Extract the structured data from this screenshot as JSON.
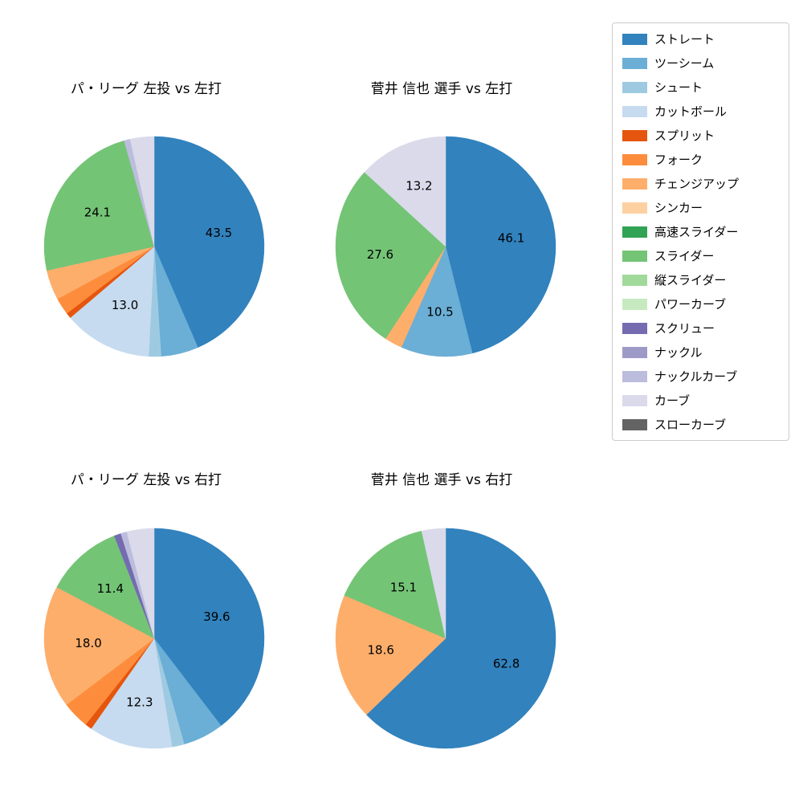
{
  "figure": {
    "background": "#ffffff"
  },
  "legend": {
    "position": "right",
    "items": [
      {
        "label": "ストレート",
        "color": "#3182bd"
      },
      {
        "label": "ツーシーム",
        "color": "#6baed6"
      },
      {
        "label": "シュート",
        "color": "#9ecae1"
      },
      {
        "label": "カットボール",
        "color": "#c6dbef"
      },
      {
        "label": "スプリット",
        "color": "#e6550d"
      },
      {
        "label": "フォーク",
        "color": "#fd8d3c"
      },
      {
        "label": "チェンジアップ",
        "color": "#fdae6b"
      },
      {
        "label": "シンカー",
        "color": "#fdd0a2"
      },
      {
        "label": "高速スライダー",
        "color": "#31a354"
      },
      {
        "label": "スライダー",
        "color": "#74c476"
      },
      {
        "label": "縦スライダー",
        "color": "#a1d99b"
      },
      {
        "label": "パワーカーブ",
        "color": "#c7e9c0"
      },
      {
        "label": "スクリュー",
        "color": "#756bb1"
      },
      {
        "label": "ナックル",
        "color": "#9e9ac8"
      },
      {
        "label": "ナックルカーブ",
        "color": "#bcbddc"
      },
      {
        "label": "カーブ",
        "color": "#dadaeb"
      },
      {
        "label": "スローカーブ",
        "color": "#636363"
      }
    ]
  },
  "chart_data": [
    {
      "type": "pie",
      "title": "パ・リーグ 左投 vs 左打",
      "start_angle": 90,
      "direction": "clockwise",
      "label_threshold": 10,
      "slices": [
        {
          "name": "ストレート",
          "value": 43.5
        },
        {
          "name": "ツーシーム",
          "value": 5.5
        },
        {
          "name": "シュート",
          "value": 1.8
        },
        {
          "name": "カットボール",
          "value": 13.0
        },
        {
          "name": "スプリット",
          "value": 0.8
        },
        {
          "name": "フォーク",
          "value": 2.5
        },
        {
          "name": "チェンジアップ",
          "value": 4.4
        },
        {
          "name": "スライダー",
          "value": 24.1
        },
        {
          "name": "ナックルカーブ",
          "value": 0.9
        },
        {
          "name": "カーブ",
          "value": 3.5
        }
      ]
    },
    {
      "type": "pie",
      "title": "菅井 信也 選手 vs 左打",
      "start_angle": 90,
      "direction": "clockwise",
      "label_threshold": 10,
      "slices": [
        {
          "name": "ストレート",
          "value": 46.1
        },
        {
          "name": "ツーシーム",
          "value": 10.5
        },
        {
          "name": "チェンジアップ",
          "value": 2.6
        },
        {
          "name": "スライダー",
          "value": 27.6
        },
        {
          "name": "カーブ",
          "value": 13.2
        }
      ]
    },
    {
      "type": "pie",
      "title": "パ・リーグ 左投 vs 右打",
      "start_angle": 90,
      "direction": "clockwise",
      "label_threshold": 10,
      "slices": [
        {
          "name": "ストレート",
          "value": 39.6
        },
        {
          "name": "ツーシーム",
          "value": 6.0
        },
        {
          "name": "シュート",
          "value": 1.8
        },
        {
          "name": "カットボール",
          "value": 12.3
        },
        {
          "name": "スプリット",
          "value": 1.0
        },
        {
          "name": "フォーク",
          "value": 4.0
        },
        {
          "name": "チェンジアップ",
          "value": 18.0
        },
        {
          "name": "スライダー",
          "value": 11.4
        },
        {
          "name": "スクリュー",
          "value": 1.0
        },
        {
          "name": "ナックルカーブ",
          "value": 0.9
        },
        {
          "name": "カーブ",
          "value": 4.0
        }
      ]
    },
    {
      "type": "pie",
      "title": "菅井 信也 選手 vs 右打",
      "start_angle": 90,
      "direction": "clockwise",
      "label_threshold": 10,
      "slices": [
        {
          "name": "ストレート",
          "value": 62.8
        },
        {
          "name": "チェンジアップ",
          "value": 18.6
        },
        {
          "name": "スライダー",
          "value": 15.1
        },
        {
          "name": "カーブ",
          "value": 3.5
        }
      ]
    }
  ]
}
